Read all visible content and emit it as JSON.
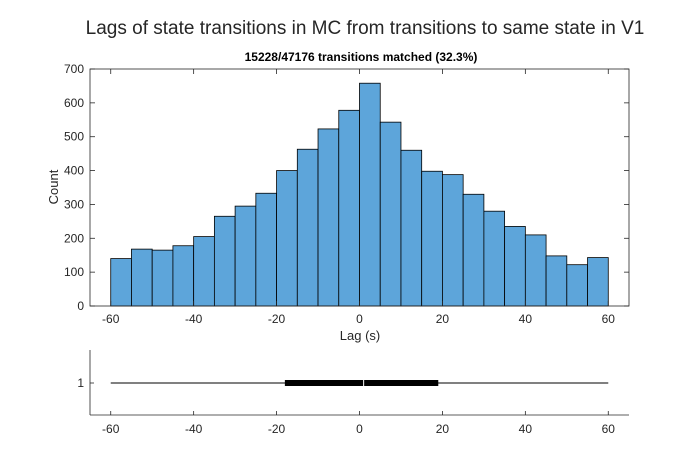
{
  "figure": {
    "title": "Lags of state transitions in MC from transitions to same state in V1"
  },
  "chart_data": [
    {
      "type": "bar",
      "title": "15228/47176 transitions matched (32.3%)",
      "xlabel": "Lag (s)",
      "ylabel": "Count",
      "xlim": [
        -65,
        65
      ],
      "ylim": [
        0,
        700
      ],
      "xticks": [
        -60,
        -40,
        -20,
        0,
        20,
        40,
        60
      ],
      "yticks": [
        0,
        100,
        200,
        300,
        400,
        500,
        600,
        700
      ],
      "bin_edges": [
        -60,
        -55,
        -50,
        -45,
        -40,
        -35,
        -30,
        -25,
        -20,
        -15,
        -10,
        -5,
        0,
        5,
        10,
        15,
        20,
        25,
        30,
        35,
        40,
        45,
        50,
        55,
        60
      ],
      "values": [
        140,
        168,
        165,
        178,
        205,
        265,
        295,
        333,
        400,
        463,
        523,
        578,
        658,
        543,
        460,
        398,
        388,
        330,
        280,
        235,
        210,
        148,
        122,
        143
      ],
      "bar_color": "#5DA5DA",
      "edge_color": "#000000",
      "grid": false
    },
    {
      "type": "box",
      "xlim": [
        -65,
        65
      ],
      "xticks": [
        -60,
        -40,
        -20,
        0,
        20,
        40,
        60
      ],
      "yticks": [
        1
      ],
      "whisker_low": -60,
      "q1": -18,
      "median": 1,
      "q3": 19,
      "whisker_high": 60,
      "color": "#000000"
    }
  ]
}
